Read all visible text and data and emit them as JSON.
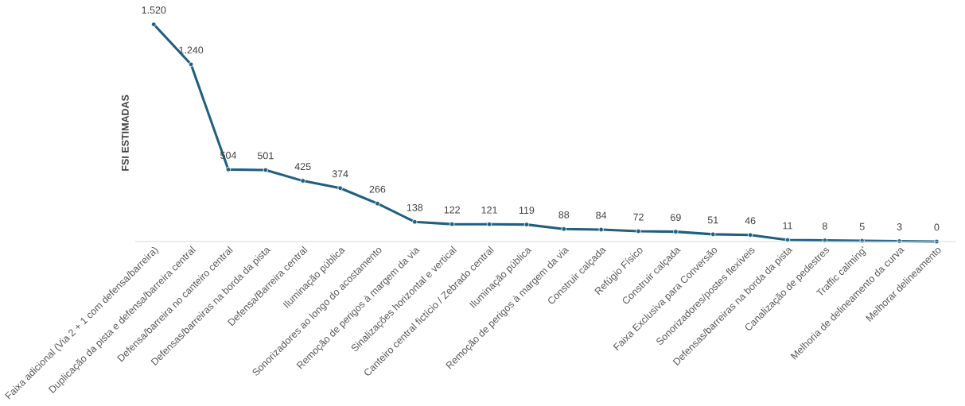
{
  "chart_data": {
    "type": "line",
    "ylabel": "FSI ESTIMADAS",
    "categories": [
      "Faixa adicional (Via 2 + 1 com defensa/barreira)",
      "Duplicação da pista e defensa/barreira central",
      "Defensa/barreira no canteiro central",
      "Defensas/barreiras na borda da pista",
      "Defensa/Barreira central",
      "Iluminação pública",
      "Sonorizadores ao longo do acostamento",
      "Remoção de perigos à margem da via",
      "Sinalizações horizontal e vertical",
      "Canteiro central fictício / Zebrado central",
      "Iluminação pública",
      "Remoção de perigos à margem da via",
      "Construir calçada",
      "Refúgio Físico",
      "Construir calçada",
      "Faixa Exclusiva para Conversão",
      "Sonorizadores/postes flexíveis",
      "Defensas/barreiras na borda da pista",
      "Canalização de pedestres",
      "Traffic calming'",
      "Melhoria de delineamento da curva",
      "Melhorar delineamento"
    ],
    "series": [
      {
        "color": "#1f5f80",
        "values": [
          1520,
          1240,
          504,
          501,
          425,
          374,
          266,
          138,
          122,
          121,
          119,
          88,
          84,
          72,
          69,
          51,
          46,
          11,
          8,
          5,
          3,
          0
        ],
        "value_labels": [
          "1.520",
          "1.240",
          "504",
          "501",
          "425",
          "374",
          "266",
          "138",
          "122",
          "121",
          "119",
          "88",
          "84",
          "72",
          "69",
          "51",
          "46",
          "11",
          "8",
          "5",
          "3",
          "0"
        ]
      }
    ],
    "marker": "circle",
    "line_style": "solid",
    "grid": false,
    "legend": false
  }
}
